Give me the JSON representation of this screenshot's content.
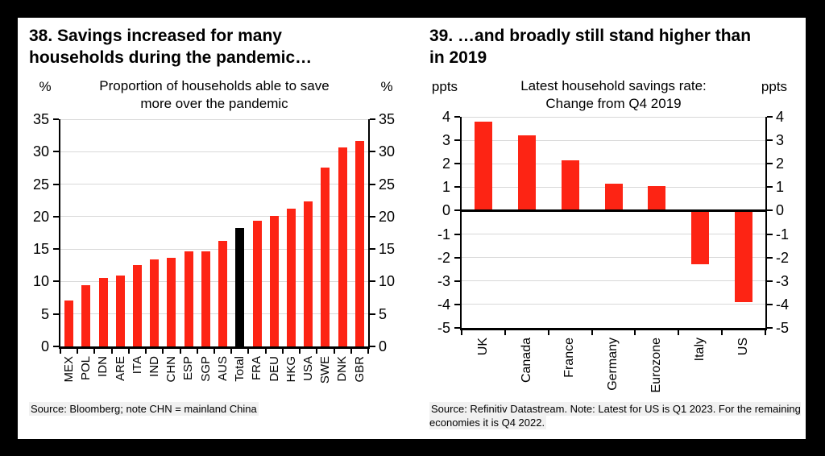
{
  "panels": {
    "left": {
      "title": "38. Savings increased for many\nhouseholds during the pandemic…",
      "unit_left": "%",
      "unit_right": "%",
      "subtitle": "Proportion of households able to save\nmore over the pandemic",
      "source": "Source: Bloomberg; note CHN = mainland China"
    },
    "right": {
      "title": "39. …and broadly still stand higher than\nin 2019",
      "unit_left": "ppts",
      "unit_right": "ppts",
      "subtitle": "Latest household savings rate:\nChange from Q4 2019",
      "source": "Source: Refinitiv Datastream. Note: Latest for US is Q1 2023. For the remaining\neconomies it is Q4 2022."
    }
  },
  "chart_data": [
    {
      "type": "bar",
      "title": "Proportion of households able to save more over the pandemic",
      "ylabel": "%",
      "categories": [
        "MEX",
        "POL",
        "IDN",
        "ARE",
        "ITA",
        "IND",
        "CHN",
        "ESP",
        "SGP",
        "AUS",
        "Total",
        "FRA",
        "DEU",
        "HKG",
        "USA",
        "SWE",
        "DNK",
        "GBR"
      ],
      "values": [
        7.1,
        9.4,
        10.6,
        10.9,
        12.5,
        13.4,
        13.7,
        14.6,
        14.7,
        16.3,
        18.3,
        19.4,
        20.1,
        21.2,
        22.4,
        27.5,
        30.7,
        31.6
      ],
      "ylim": [
        0,
        35
      ],
      "ytick_step": 5,
      "grid": true,
      "legend": false,
      "bar_color": "#fd2414",
      "bar_colors": {
        "Total": "#000000"
      }
    },
    {
      "type": "bar",
      "title": "Latest household savings rate: Change from Q4 2019",
      "ylabel": "ppts",
      "categories": [
        "UK",
        "Canada",
        "France",
        "Germany",
        "Eurozone",
        "Italy",
        "US"
      ],
      "values": [
        3.8,
        3.2,
        2.15,
        1.15,
        1.05,
        -2.3,
        -3.9
      ],
      "ylim": [
        -5,
        4
      ],
      "ytick_step": 1,
      "grid": true,
      "legend": false,
      "bar_color": "#fd2414",
      "bar_colors": {}
    }
  ],
  "colors": {
    "bar_red": "#fd2414",
    "highlight_black": "#000000",
    "grid": "#d8d8d8",
    "axis": "#000000",
    "frame": "#000000",
    "background": "#ffffff",
    "source_bg": "#f1f1f1"
  }
}
